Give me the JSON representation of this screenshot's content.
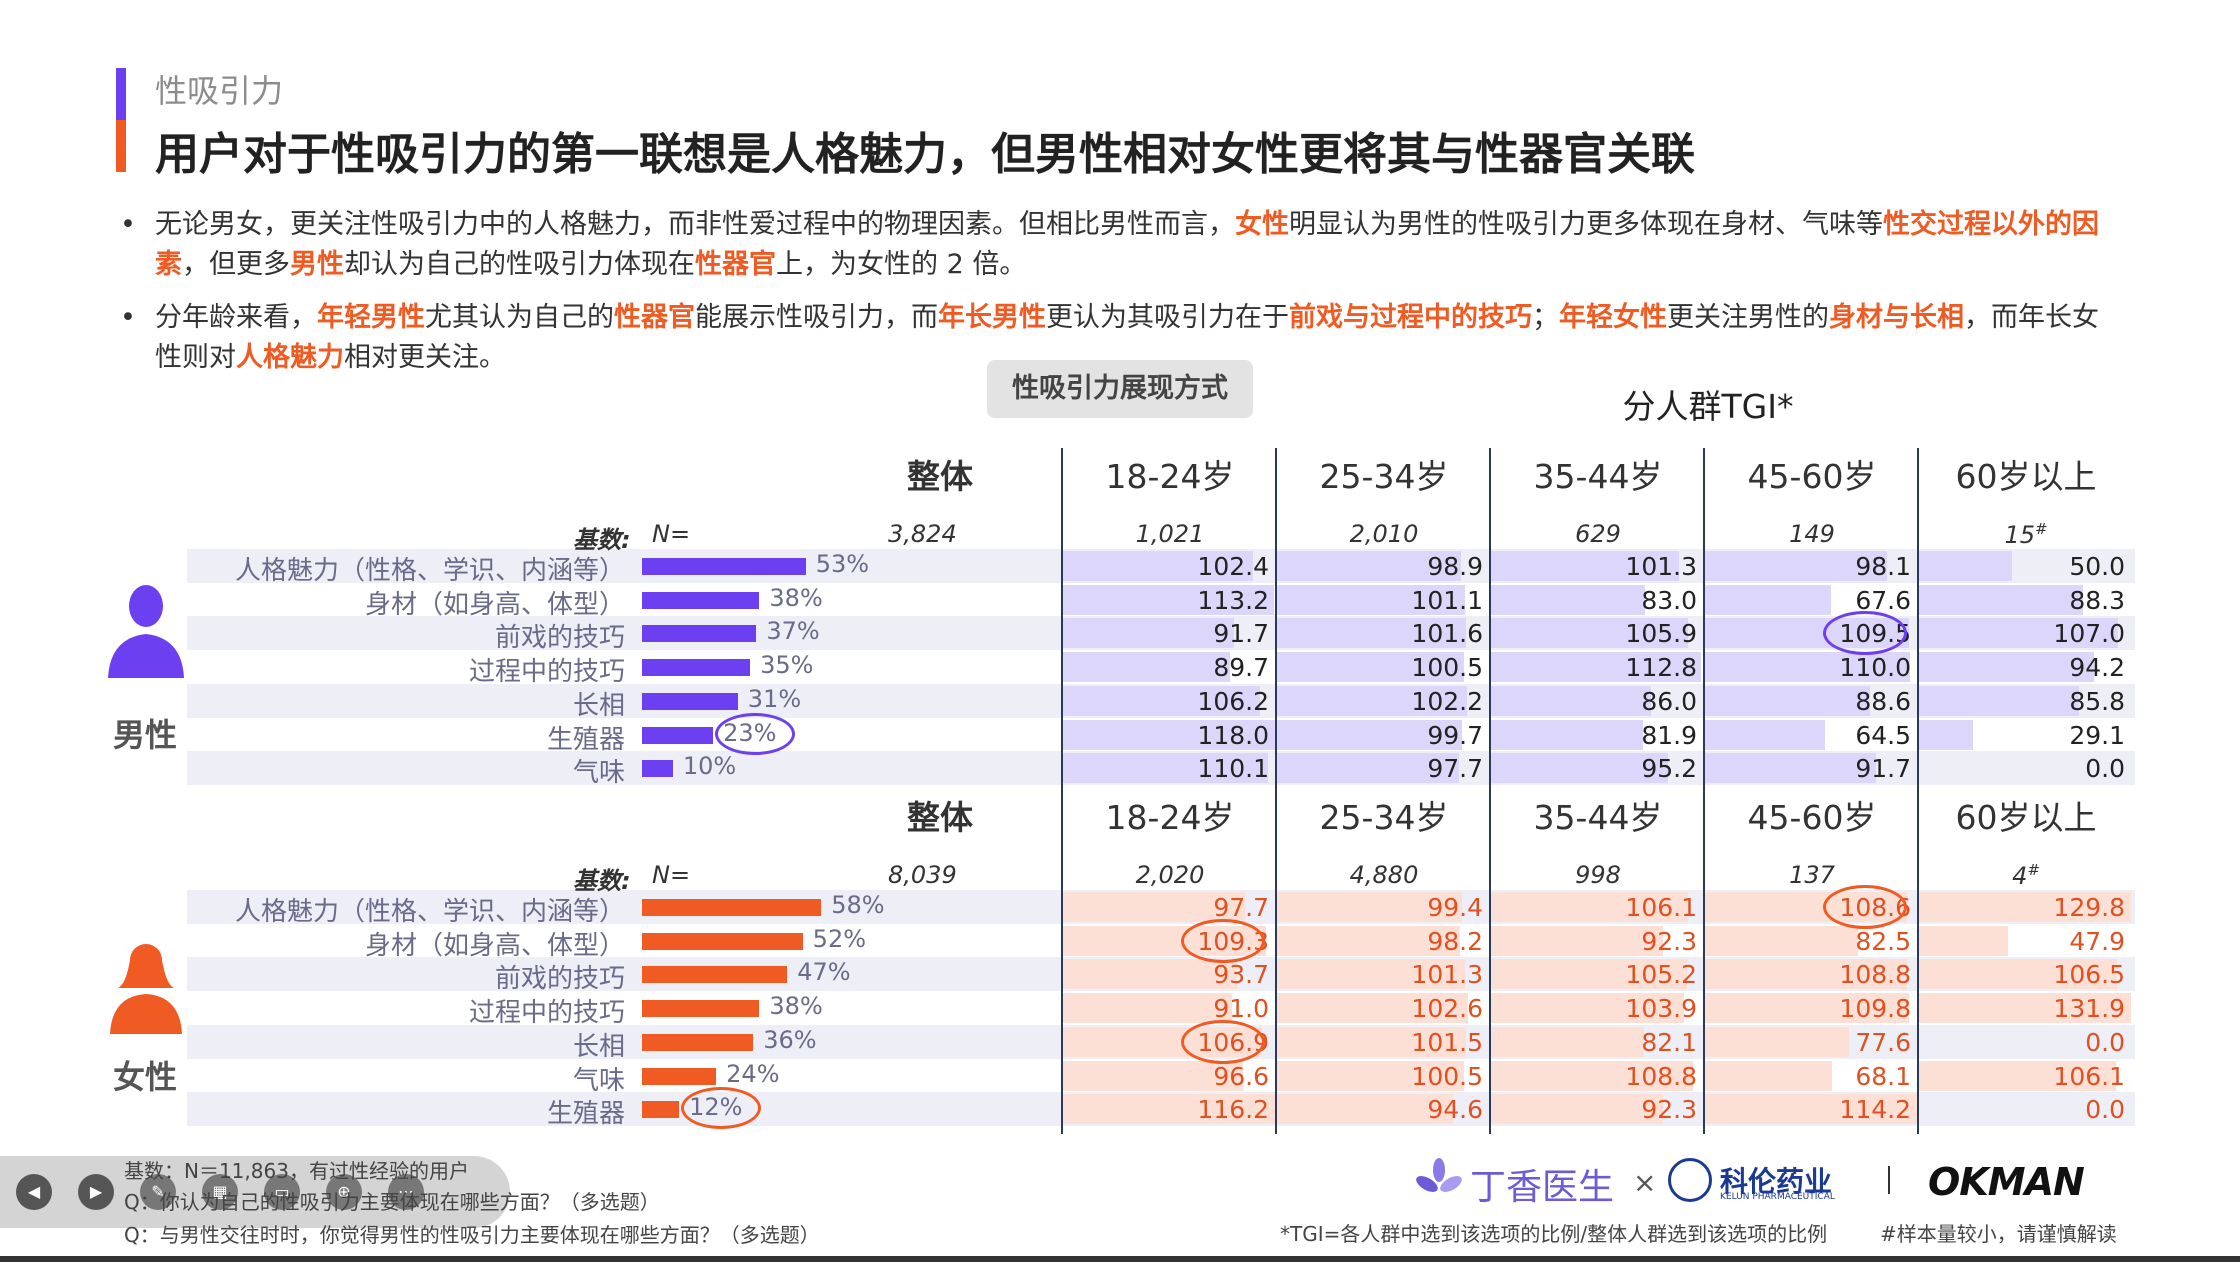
{
  "section_tag": "性吸引力",
  "title": "用户对于性吸引力的第一联想是人格魅力，但男性相对女性更将其与性器官关联",
  "bullets": [
    [
      {
        "t": "无论男女，更关注性吸引力中的人格魅力，而非性爱过程中的物理因素。但相比男性而言，",
        "h": false
      },
      {
        "t": "女性",
        "h": true
      },
      {
        "t": "明显认为男性的性吸引力更多体现在身材、气味等",
        "h": false
      },
      {
        "t": "性交过程以外的因素",
        "h": true
      },
      {
        "t": "，但更多",
        "h": false
      },
      {
        "t": "男性",
        "h": true
      },
      {
        "t": "却认为自己的性吸引力体现在",
        "h": false
      },
      {
        "t": "性器官",
        "h": true
      },
      {
        "t": "上，为女性的 2 倍。",
        "h": false
      }
    ],
    [
      {
        "t": "分年龄来看，",
        "h": false
      },
      {
        "t": "年轻男性",
        "h": true
      },
      {
        "t": "尤其认为自己的",
        "h": false
      },
      {
        "t": "性器官",
        "h": true
      },
      {
        "t": "能展示性吸引力，而",
        "h": false
      },
      {
        "t": "年长男性",
        "h": true
      },
      {
        "t": "更认为其吸引力在于",
        "h": false
      },
      {
        "t": "前戏与过程中的技巧",
        "h": true
      },
      {
        "t": "；",
        "h": false
      },
      {
        "t": "年轻女性",
        "h": true
      },
      {
        "t": "更关注男性的",
        "h": false
      },
      {
        "t": "身材与长相",
        "h": true
      },
      {
        "t": "，而年长女性则对",
        "h": false
      },
      {
        "t": "人格魅力",
        "h": true
      },
      {
        "t": "相对更关注。",
        "h": false
      }
    ]
  ],
  "chart_pill": "性吸引力展现方式",
  "tgi_title": "分人群TGI*",
  "age_groups": [
    "18-24岁",
    "25-34岁",
    "35-44岁",
    "45-60岁",
    "60岁以上"
  ],
  "overall_label": "整体",
  "base_label": "基数:",
  "base_n_label": "N=",
  "colors": {
    "male": "#6c3ff0",
    "female": "#f05a23",
    "male_tint": "#dcd6fb",
    "female_tint": "#fde0d5"
  },
  "chart_data": [
    {
      "type": "bar",
      "panel": "男性",
      "base_overall": "3,824",
      "base_age": [
        "1,021",
        "2,010",
        "629",
        "149",
        "15"
      ],
      "base_age_flags": [
        "",
        "",
        "",
        "",
        "#"
      ],
      "categories": [
        "人格魅力（性格、学识、内涵等）",
        "身材（如身高、体型）",
        "前戏的技巧",
        "过程中的技巧",
        "长相",
        "生殖器",
        "气味"
      ],
      "overall_pct": [
        53,
        38,
        37,
        35,
        31,
        23,
        10
      ],
      "overall_pct_labels": [
        "53%",
        "38%",
        "37%",
        "35%",
        "31%",
        "23%",
        "10%"
      ],
      "tgi": [
        [
          "102.4",
          "98.9",
          "101.3",
          "98.1",
          "50.0"
        ],
        [
          "113.2",
          "101.1",
          "83.0",
          "67.6",
          "88.3"
        ],
        [
          "91.7",
          "101.6",
          "105.9",
          "109.5",
          "107.0"
        ],
        [
          "89.7",
          "100.5",
          "112.8",
          "110.0",
          "94.2"
        ],
        [
          "106.2",
          "102.2",
          "86.0",
          "88.6",
          "85.8"
        ],
        [
          "118.0",
          "99.7",
          "81.9",
          "64.5",
          "29.1"
        ],
        [
          "110.1",
          "97.7",
          "95.2",
          "91.7",
          "0.0"
        ]
      ],
      "circled_overall_rows": [
        5
      ],
      "circled_tgi": [
        [
          2,
          3
        ]
      ]
    },
    {
      "type": "bar",
      "panel": "女性",
      "base_overall": "8,039",
      "base_age": [
        "2,020",
        "4,880",
        "998",
        "137",
        "4"
      ],
      "base_age_flags": [
        "",
        "",
        "",
        "",
        "#"
      ],
      "categories": [
        "人格魅力（性格、学识、内涵等）",
        "身材（如身高、体型）",
        "前戏的技巧",
        "过程中的技巧",
        "长相",
        "气味",
        "生殖器"
      ],
      "overall_pct": [
        58,
        52,
        47,
        38,
        36,
        24,
        12
      ],
      "overall_pct_labels": [
        "58%",
        "52%",
        "47%",
        "38%",
        "36%",
        "24%",
        "12%"
      ],
      "tgi": [
        [
          "97.7",
          "99.4",
          "106.1",
          "108.6",
          "129.8"
        ],
        [
          "109.3",
          "98.2",
          "92.3",
          "82.5",
          "47.9"
        ],
        [
          "93.7",
          "101.3",
          "105.2",
          "108.8",
          "106.5"
        ],
        [
          "91.0",
          "102.6",
          "103.9",
          "109.8",
          "131.9"
        ],
        [
          "106.9",
          "101.5",
          "82.1",
          "77.6",
          "0.0"
        ],
        [
          "96.6",
          "100.5",
          "108.8",
          "68.1",
          "106.1"
        ],
        [
          "116.2",
          "94.6",
          "92.3",
          "114.2",
          "0.0"
        ]
      ],
      "circled_overall_rows": [
        6
      ],
      "circled_tgi": [
        [
          1,
          0
        ],
        [
          4,
          0
        ],
        [
          0,
          3
        ]
      ]
    }
  ],
  "footnotes": [
    "基数：N＝11,863，有过性经验的用户",
    "Q：你认为自己的性吸引力主要体现在哪些方面？（多选题）",
    "Q：与男性交往时时，你觉得男性的性吸引力主要体现在哪些方面？（多选题）"
  ],
  "tgi_note": "*TGI=各人群中选到该选项的比例/整体人群选到该选项的比例",
  "sample_note": "#样本量较小，请谨慎解读",
  "logos": {
    "dxy": "丁香医生",
    "times": "×",
    "kelun": "科伦药业",
    "kelun_sub": "KELUN PHARMACEUTICAL",
    "okman": "OKMAN"
  },
  "icons": {
    "male": "male-person-icon",
    "female": "female-person-icon"
  }
}
